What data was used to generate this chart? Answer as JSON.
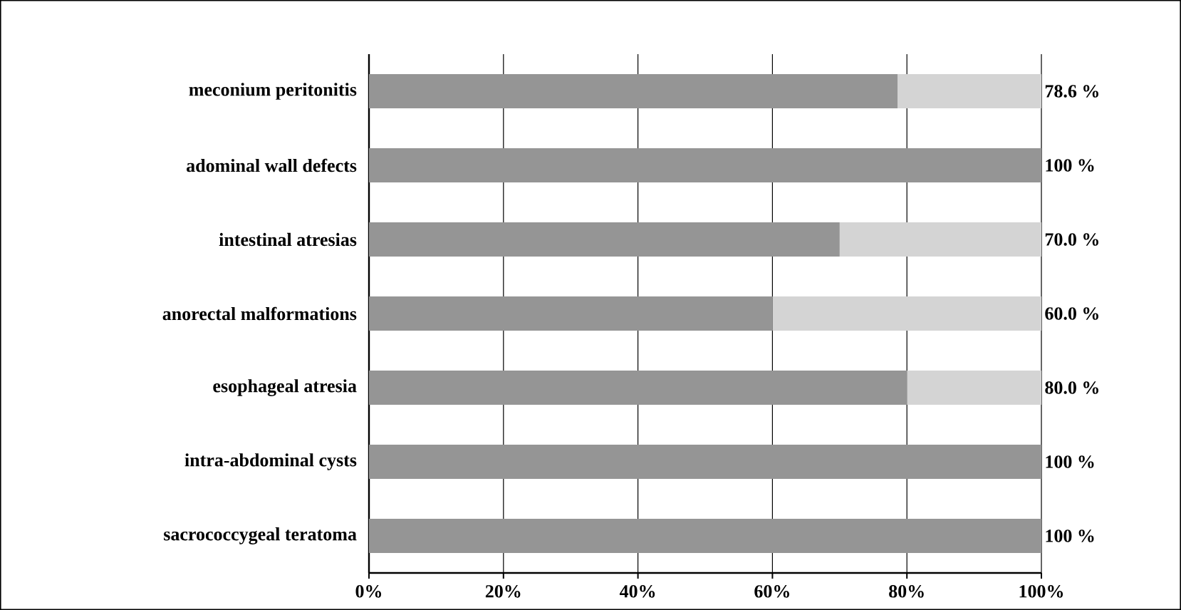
{
  "chart_data": {
    "type": "bar",
    "orientation": "horizontal",
    "stacked": true,
    "categories": [
      "meconium peritonitis",
      "adominal wall defects",
      "intestinal atresias",
      "anorectal malformations",
      "esophageal atresia",
      "intra-abdominal cysts",
      "sacrococcygeal teratoma"
    ],
    "series": [
      {
        "color": "#959595",
        "values": [
          78.6,
          100,
          70.0,
          60.0,
          80.0,
          100,
          100
        ],
        "value_labels": [
          "78.6 %",
          "100 %",
          "70.0 %",
          "60.0 %",
          "80.0 %",
          "100 %",
          "100 %"
        ]
      },
      {
        "color": "#d4d4d4",
        "values": [
          21.4,
          0,
          30.0,
          40.0,
          20.0,
          0,
          0
        ]
      }
    ],
    "xlim": [
      0,
      100
    ],
    "xticks": [
      {
        "value": 0,
        "label": "0%"
      },
      {
        "value": 20,
        "label": "20%"
      },
      {
        "value": 40,
        "label": "40%"
      },
      {
        "value": 60,
        "label": "60%"
      },
      {
        "value": 80,
        "label": "80%"
      },
      {
        "value": 100,
        "label": "100%"
      }
    ],
    "grid": "x"
  }
}
